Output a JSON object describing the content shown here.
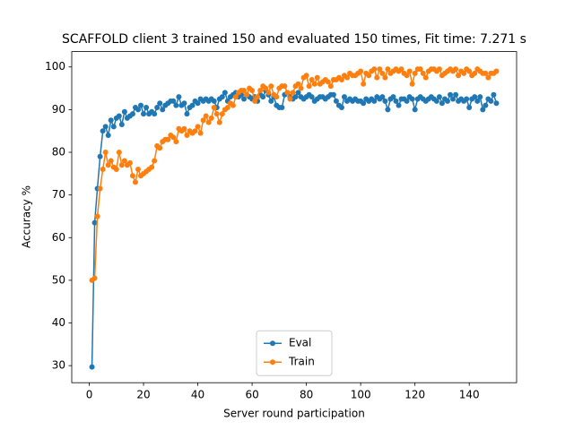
{
  "chart_data": {
    "type": "line",
    "title": "SCAFFOLD client 3 trained 150 and evaluated 150 times, Fit time: 7.271 s",
    "x_label": "Server round participation",
    "y_label": "Accuracy %",
    "x": [
      1,
      2,
      3,
      4,
      5,
      6,
      7,
      8,
      9,
      10,
      11,
      12,
      13,
      14,
      15,
      16,
      17,
      18,
      19,
      20,
      21,
      22,
      23,
      24,
      25,
      26,
      27,
      28,
      29,
      30,
      31,
      32,
      33,
      34,
      35,
      36,
      37,
      38,
      39,
      40,
      41,
      42,
      43,
      44,
      45,
      46,
      47,
      48,
      49,
      50,
      51,
      52,
      53,
      54,
      55,
      56,
      57,
      58,
      59,
      60,
      61,
      62,
      63,
      64,
      65,
      66,
      67,
      68,
      69,
      70,
      71,
      72,
      73,
      74,
      75,
      76,
      77,
      78,
      79,
      80,
      81,
      82,
      83,
      84,
      85,
      86,
      87,
      88,
      89,
      90,
      91,
      92,
      93,
      94,
      95,
      96,
      97,
      98,
      99,
      100,
      101,
      102,
      103,
      104,
      105,
      106,
      107,
      108,
      109,
      110,
      111,
      112,
      113,
      114,
      115,
      116,
      117,
      118,
      119,
      120,
      121,
      122,
      123,
      124,
      125,
      126,
      127,
      128,
      129,
      130,
      131,
      132,
      133,
      134,
      135,
      136,
      137,
      138,
      139,
      140,
      141,
      142,
      143,
      144,
      145,
      146,
      147,
      148,
      149,
      150
    ],
    "series": [
      {
        "name": "Eval",
        "color": "#1f77b4",
        "values": [
          29.7,
          63.5,
          71.5,
          79,
          85,
          86,
          84,
          87.5,
          86,
          88,
          88.5,
          86.5,
          89.5,
          88,
          88.5,
          89,
          90.5,
          90,
          91,
          89,
          90.5,
          89,
          89.5,
          89,
          90.5,
          91.5,
          90,
          91,
          91.5,
          92,
          92,
          91,
          93,
          91,
          91.5,
          89,
          90.5,
          91,
          92,
          91.5,
          92.5,
          92,
          92.5,
          92,
          92.5,
          92,
          90.5,
          92.5,
          93,
          94,
          92,
          93,
          93.5,
          94,
          93,
          93.5,
          92.5,
          93.5,
          93,
          92.5,
          93,
          92,
          93.5,
          93,
          94.5,
          93.5,
          92,
          93,
          91,
          90.5,
          90.5,
          93.5,
          94,
          93,
          92.5,
          93,
          94,
          93,
          92.5,
          93,
          93.5,
          93,
          92,
          92.5,
          93,
          93,
          92.5,
          93,
          93.5,
          93.5,
          92,
          91,
          90.5,
          93,
          92,
          92.5,
          92,
          92.5,
          92,
          92,
          91.5,
          92.5,
          92,
          92.5,
          92,
          93,
          92.5,
          93,
          92,
          90,
          92.5,
          93,
          92,
          91,
          92.5,
          92.5,
          92,
          93,
          92.5,
          90,
          92.5,
          93,
          92.5,
          92,
          92.5,
          93,
          92.5,
          92,
          93,
          91.5,
          92.5,
          92,
          93.5,
          92.5,
          93.5,
          92,
          92.5,
          92,
          92.5,
          90.5,
          92.5,
          93,
          92,
          93,
          90,
          91,
          92.5,
          92,
          93.5,
          91.5
        ]
      },
      {
        "name": "Train",
        "color": "#ff7f0e",
        "values": [
          50,
          50.5,
          65,
          71.5,
          76,
          80,
          77,
          78,
          76.5,
          76,
          80,
          77,
          78,
          77,
          77.5,
          74.5,
          73,
          76,
          74.5,
          75,
          75.5,
          76,
          76.5,
          78,
          81.5,
          81,
          82.5,
          83,
          83,
          84,
          83.5,
          82.5,
          85.5,
          85,
          85.5,
          84,
          85,
          84.5,
          85,
          86,
          84.5,
          87.5,
          88.5,
          87,
          88,
          90.5,
          89,
          87,
          89,
          90,
          90.5,
          91.5,
          91,
          93,
          94,
          94.5,
          94.5,
          93.5,
          95,
          94.5,
          92,
          93,
          94.5,
          95.5,
          95,
          94,
          95.5,
          93.5,
          93,
          95,
          95.5,
          95.5,
          94,
          92.5,
          94,
          95.5,
          96,
          95,
          97.5,
          98,
          95.5,
          97,
          96,
          97.5,
          96,
          96.5,
          97,
          96.5,
          95.5,
          97,
          97,
          97.5,
          97,
          98,
          97.5,
          98.5,
          98,
          98,
          98.5,
          99,
          96,
          98.5,
          98,
          99,
          99.5,
          97.5,
          99.5,
          98.5,
          97.5,
          99.5,
          98.5,
          99,
          99.5,
          99,
          99.5,
          98.5,
          98,
          99,
          96,
          98.5,
          99.5,
          99.5,
          98.5,
          97.5,
          99,
          99.5,
          99.5,
          99,
          99.5,
          98,
          98.5,
          99,
          99.5,
          99,
          99.5,
          98,
          99,
          98.5,
          99.5,
          99,
          98,
          98.5,
          99.5,
          99,
          98.5,
          98.5,
          97.5,
          98.5,
          98.5,
          99
        ]
      }
    ],
    "xlim": [
      -6.45,
      157.45
    ],
    "ylim": [
      26.0,
      103.6
    ],
    "xticks": [
      0,
      20,
      40,
      60,
      80,
      100,
      120,
      140
    ],
    "yticks": [
      30,
      40,
      50,
      60,
      70,
      80,
      90,
      100
    ],
    "legend": "lower center"
  }
}
